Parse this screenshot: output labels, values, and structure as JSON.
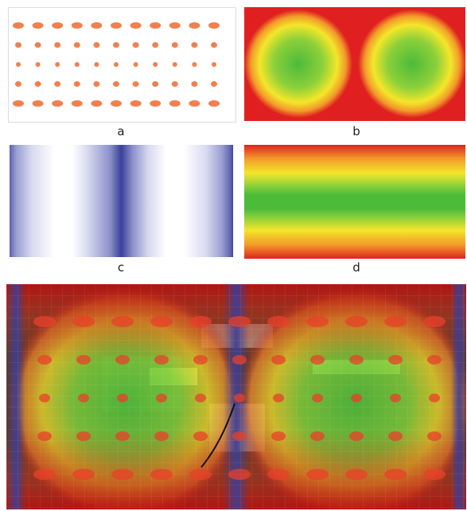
{
  "labels": {
    "a": "a",
    "b": "b",
    "c": "c",
    "d": "d"
  },
  "colors": {
    "dot": "#f08050",
    "heat_red": "#e02020",
    "heat_yellow": "#f4e62a",
    "heat_green": "#4cbb3a",
    "stripe_blue": "#3a3f9a",
    "photo_base": "#3a3a2e"
  }
}
